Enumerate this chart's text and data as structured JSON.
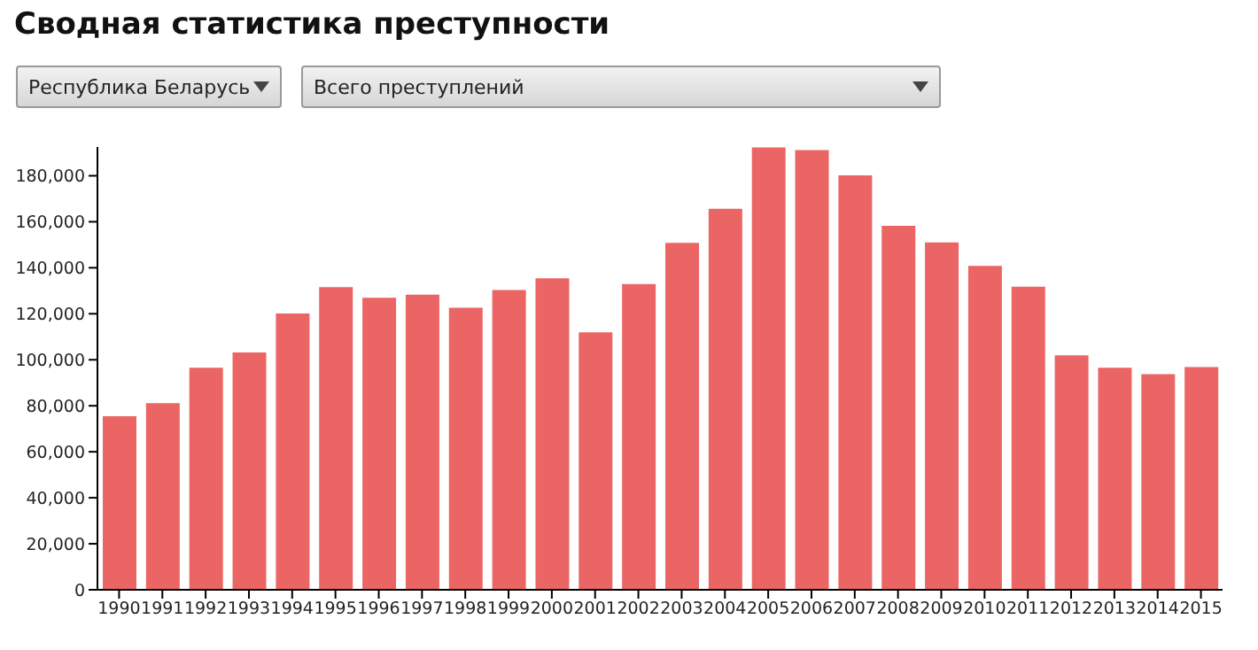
{
  "chart_data": {
    "type": "bar",
    "title": "Сводная статистика преступности",
    "annotations": [
      "Республика Беларусь",
      "Всего преступлений"
    ],
    "categories": [
      "1990",
      "1991",
      "1992",
      "1993",
      "1994",
      "1995",
      "1996",
      "1997",
      "1998",
      "1999",
      "2000",
      "2001",
      "2002",
      "2003",
      "2004",
      "2005",
      "2006",
      "2007",
      "2008",
      "2009",
      "2010",
      "2011",
      "2012",
      "2013",
      "2014",
      "2015"
    ],
    "values": [
      75500,
      81100,
      96500,
      103200,
      120100,
      131600,
      127000,
      128300,
      122600,
      130300,
      135400,
      111900,
      132900,
      150800,
      165600,
      192300,
      191200,
      180200,
      158200,
      151000,
      140800,
      131800,
      101900,
      96500,
      93700,
      96800
    ],
    "color": "#ec6565",
    "ylim": [
      0,
      192500
    ],
    "yticks": [
      0,
      {
        "value": 20000,
        "label": "20,000"
      },
      {
        "value": 40000,
        "label": "40,000"
      },
      {
        "value": 60000,
        "label": "60,000"
      },
      {
        "value": 80000,
        "label": "80,000"
      },
      {
        "value": 100000,
        "label": "100,000"
      },
      {
        "value": 120000,
        "label": "120,000"
      },
      {
        "value": 140000,
        "label": "140,000"
      },
      {
        "value": 160000,
        "label": "160,000"
      },
      {
        "value": 180000,
        "label": "180,000"
      }
    ]
  }
}
